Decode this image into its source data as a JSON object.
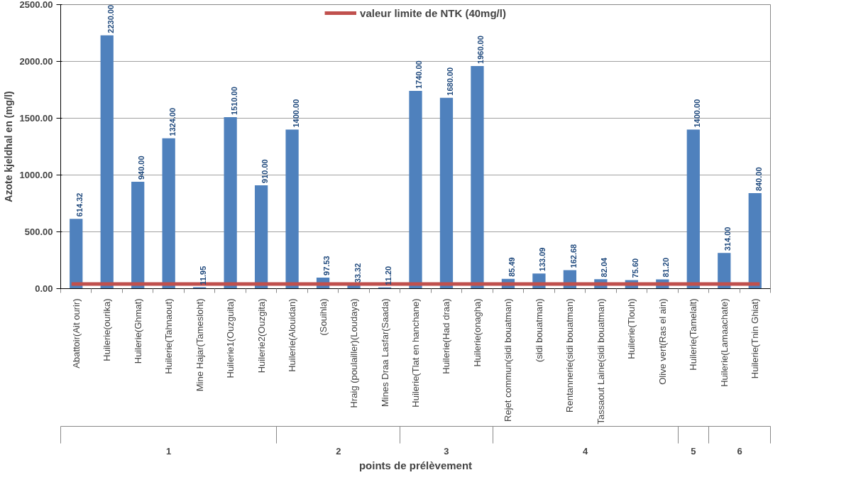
{
  "chart_data": {
    "type": "bar",
    "xlabel": "points de prélèvement",
    "ylabel": "Azote kjeldhal en (mg/l)",
    "categories": [
      "Abattoir(Ait ourir)",
      "Huilerie(ourika)",
      "Huilerie(Ghmat)",
      "Huilerie(Tahnaout)",
      "Mine Hajar(Tamesloht)",
      "Huilerie1(Ouzguita)",
      "Huilerie2(Ouzgita)",
      "Huilerie(Alouidan)",
      "(Souihla)",
      "Hraig (poulailler)(Loudaya)",
      "Mines Draa Lasfar(Saada)",
      "Huilerie(Tlat en hanchane)",
      "Huilerie(Had draa)",
      "Huilerie(onagha)",
      "Rejet commun(sidi bouatman)",
      "(sidi bouatman)",
      "Rentannerie(sidi bouatman)",
      "Tassaout Laine(sidi bouatman)",
      "Huilerie(Tlouh)",
      "Olive vert(Ras el ain)",
      "Huilerie(Tamelalt)",
      "Huilerie(Lamaachate)",
      "Huilerie(Tnin Ghiat)"
    ],
    "values": [
      614.32,
      2230,
      940,
      1324,
      11.95,
      1510,
      910,
      1400,
      97.53,
      33.32,
      11.2,
      1740,
      1680,
      1960,
      85.49,
      133.09,
      162.68,
      82.04,
      75.6,
      81.2,
      1400,
      314,
      840
    ],
    "value_labels": [
      "614.32",
      "2230.00",
      "940.00",
      "1324.00",
      "11.95",
      "1510.00",
      "910.00",
      "1400.00",
      "97.53",
      "33.32",
      "11.20",
      "1740.00",
      "1680.00",
      "1960.00",
      "85.49",
      "133.09",
      "162.68",
      "82.04",
      "75.60",
      "81.20",
      "1400.00",
      "314.00",
      "840.00"
    ],
    "color": "#4f81bd",
    "ylim": [
      0,
      2500
    ],
    "yticks": [
      {
        "value": 0,
        "label": "0.00"
      },
      {
        "value": 500,
        "label": "500.00"
      },
      {
        "value": 1000,
        "label": "1000.00"
      },
      {
        "value": 1500,
        "label": "1500.00"
      },
      {
        "value": 2000,
        "label": "2000.00"
      },
      {
        "value": 2500,
        "label": "2500.00"
      }
    ],
    "ref_lines": [
      {
        "axis": "y",
        "value": 40,
        "label": "valeur limite de NTK (40mg/l)",
        "color": "#c0504d"
      }
    ],
    "annotations": [
      "1",
      "2",
      "3",
      "4",
      "5",
      "6"
    ],
    "grid": "y",
    "legend": "top"
  }
}
